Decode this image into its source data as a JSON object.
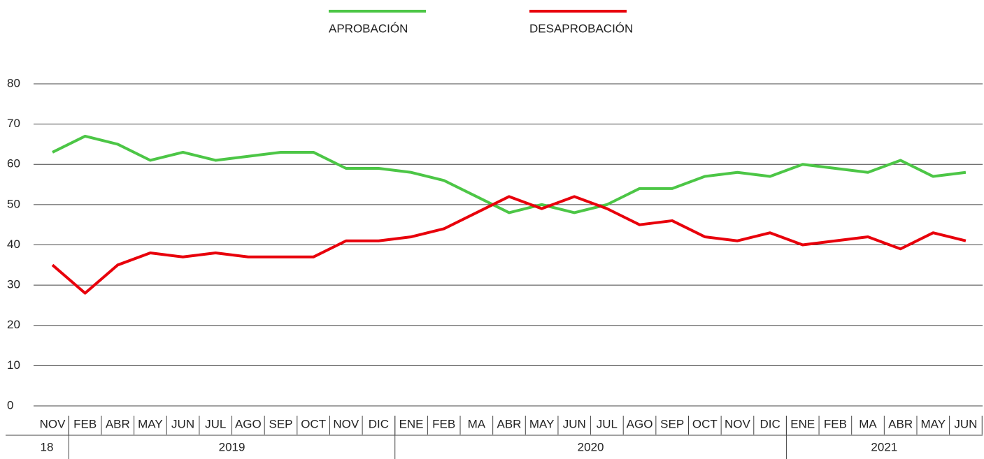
{
  "chart_data": {
    "type": "line",
    "categories": [
      "NOV",
      "FEB",
      "ABR",
      "MAY",
      "JUN",
      "JUL",
      "AGO",
      "SEP",
      "OCT",
      "NOV",
      "DIC",
      "ENE",
      "FEB",
      "MA",
      "ABR",
      "MAY",
      "JUN",
      "JUL",
      "AGO",
      "SEP",
      "OCT",
      "NOV",
      "DIC",
      "ENE",
      "FEB",
      "MA",
      "ABR",
      "MAY",
      "JUN"
    ],
    "groups": [
      {
        "label": "18",
        "span": 1
      },
      {
        "label": "2019",
        "span": 10
      },
      {
        "label": "2020",
        "span": 12
      },
      {
        "label": "2021",
        "span": 6
      }
    ],
    "series": [
      {
        "name": "APROBACIÓN",
        "color": "#4cc646",
        "values": [
          63,
          67,
          65,
          61,
          63,
          61,
          62,
          63,
          63,
          59,
          59,
          58,
          56,
          52,
          48,
          50,
          48,
          50,
          54,
          54,
          57,
          58,
          57,
          60,
          59,
          58,
          61,
          57,
          58
        ]
      },
      {
        "name": "DESAPROBACIÓN",
        "color": "#e8000b",
        "values": [
          35,
          28,
          35,
          38,
          37,
          38,
          37,
          37,
          37,
          41,
          41,
          42,
          44,
          48,
          52,
          49,
          52,
          49,
          45,
          46,
          42,
          41,
          43,
          40,
          41,
          42,
          39,
          43,
          41
        ]
      }
    ],
    "ylim": [
      0,
      80
    ],
    "yticks": [
      0,
      10,
      20,
      30,
      40,
      50,
      60,
      70,
      80
    ],
    "grid": true,
    "legend": "top"
  }
}
